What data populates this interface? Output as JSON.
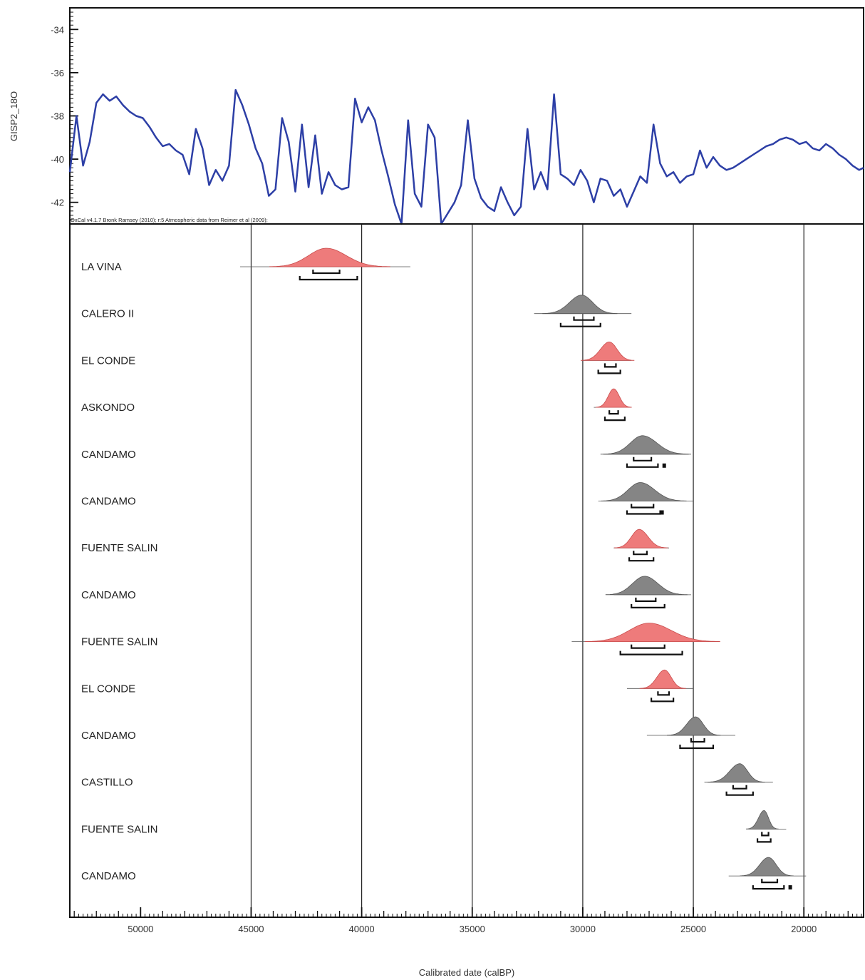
{
  "chart_data": {
    "type": "oxcal-multiplot",
    "x_axis": {
      "label": "Calibrated date (calBP)",
      "range": [
        53200,
        17300
      ],
      "reversed": true,
      "major_ticks": [
        50000,
        45000,
        40000,
        35000,
        30000,
        25000,
        20000
      ],
      "minor_step": 1000,
      "micro_step": 200,
      "gridlines": [
        45000,
        40000,
        35000,
        30000,
        25000,
        20000
      ]
    },
    "top_panel": {
      "ylabel": "GISP2_18O",
      "y_range": [
        -43,
        -33
      ],
      "y_ticks": [
        -34,
        -36,
        -38,
        -40,
        -42
      ],
      "y_tick_labels": [
        "-34",
        "-36",
        "-38",
        "-40",
        "-42"
      ],
      "credit": "OxCal v4.1.7 Bronk Ramsey (2010); r:5 Atmospheric data from Reimer et al (2009);",
      "line_color": "#2d3fa6",
      "series": {
        "x": [
          53200,
          52900,
          52600,
          52300,
          52000,
          51700,
          51400,
          51100,
          50800,
          50500,
          50200,
          49900,
          49600,
          49300,
          49000,
          48700,
          48400,
          48100,
          47800,
          47500,
          47200,
          46900,
          46600,
          46300,
          46000,
          45700,
          45400,
          45100,
          44800,
          44500,
          44200,
          43900,
          43600,
          43300,
          43000,
          42700,
          42400,
          42100,
          41800,
          41500,
          41200,
          40900,
          40600,
          40300,
          40000,
          39700,
          39400,
          39100,
          38800,
          38500,
          38200,
          37900,
          37600,
          37300,
          37000,
          36700,
          36400,
          36100,
          35800,
          35500,
          35200,
          34900,
          34600,
          34300,
          34000,
          33700,
          33400,
          33100,
          32800,
          32500,
          32200,
          31900,
          31600,
          31300,
          31000,
          30700,
          30400,
          30100,
          29800,
          29500,
          29200,
          28900,
          28600,
          28300,
          28000,
          27700,
          27400,
          27100,
          26800,
          26500,
          26200,
          25900,
          25600,
          25300,
          25000,
          24700,
          24400,
          24100,
          23800,
          23500,
          23200,
          22900,
          22600,
          22300,
          22000,
          21700,
          21400,
          21100,
          20800,
          20500,
          20200,
          19900,
          19600,
          19300,
          19000,
          18700,
          18400,
          18100,
          17800,
          17500,
          17300
        ],
        "y": [
          -40.6,
          -38.0,
          -40.3,
          -39.2,
          -37.4,
          -37.0,
          -37.3,
          -37.1,
          -37.5,
          -37.8,
          -38.0,
          -38.1,
          -38.5,
          -39.0,
          -39.4,
          -39.3,
          -39.6,
          -39.8,
          -40.7,
          -38.6,
          -39.5,
          -41.2,
          -40.5,
          -41.0,
          -40.3,
          -36.8,
          -37.5,
          -38.4,
          -39.5,
          -40.2,
          -41.7,
          -41.4,
          -38.1,
          -39.2,
          -41.5,
          -38.4,
          -41.3,
          -38.9,
          -41.6,
          -40.6,
          -41.2,
          -41.4,
          -41.3,
          -37.2,
          -38.3,
          -37.6,
          -38.2,
          -39.6,
          -40.8,
          -42.1,
          -43.0,
          -38.2,
          -41.6,
          -42.2,
          -38.4,
          -39.0,
          -43.0,
          -42.5,
          -42.0,
          -41.2,
          -38.2,
          -40.9,
          -41.8,
          -42.2,
          -42.4,
          -41.3,
          -42.0,
          -42.6,
          -42.2,
          -38.6,
          -41.4,
          -40.6,
          -41.4,
          -37.0,
          -40.7,
          -40.9,
          -41.2,
          -40.5,
          -41.0,
          -42.0,
          -40.9,
          -41.0,
          -41.7,
          -41.4,
          -42.2,
          -41.5,
          -40.8,
          -41.1,
          -38.4,
          -40.2,
          -40.8,
          -40.6,
          -41.1,
          -40.8,
          -40.7,
          -39.6,
          -40.4,
          -39.9,
          -40.3,
          -40.5,
          -40.4,
          -40.2,
          -40.0,
          -39.8,
          -39.6,
          -39.4,
          -39.3,
          -39.1,
          -39.0,
          -39.1,
          -39.3,
          -39.2,
          -39.5,
          -39.6,
          -39.3,
          -39.5,
          -39.8,
          -40.0,
          -40.3,
          -40.5,
          -40.4
        ],
        "name": ""
      }
    },
    "bottom_panel": {
      "pink_color": "#ee7b7b",
      "grey_color": "#858585",
      "samples": [
        {
          "label": "LA VINA",
          "kind": "pink",
          "mode": 41600,
          "sd_left": 800,
          "sd_right": 900,
          "trace": [
            45500,
            37800
          ],
          "r68": [
            42200,
            41000
          ],
          "r95": [
            42800,
            40200
          ],
          "extra": null
        },
        {
          "label": "CALERO II",
          "kind": "grey",
          "mode": 30050,
          "sd_left": 550,
          "sd_right": 500,
          "trace": [
            32200,
            27800
          ],
          "r68": [
            30400,
            29500
          ],
          "r95": [
            31000,
            29200
          ],
          "extra": null
        },
        {
          "label": "EL CONDE",
          "kind": "pink",
          "mode": 28800,
          "sd_left": 400,
          "sd_right": 350,
          "trace": [
            30000,
            27800
          ],
          "r68": [
            29000,
            28500
          ],
          "r95": [
            29300,
            28300
          ],
          "extra": null
        },
        {
          "label": "ASKONDO",
          "kind": "pink",
          "mode": 28600,
          "sd_left": 250,
          "sd_right": 250,
          "trace": [
            29500,
            27800
          ],
          "r68": [
            28800,
            28400
          ],
          "r95": [
            29000,
            28100
          ],
          "extra": null
        },
        {
          "label": "CANDAMO",
          "kind": "grey",
          "mode": 27300,
          "sd_left": 550,
          "sd_right": 650,
          "trace": [
            29200,
            25100
          ],
          "r68": [
            27700,
            26900
          ],
          "r95": [
            28000,
            26600
          ],
          "extra": 26300
        },
        {
          "label": "CANDAMO",
          "kind": "grey",
          "mode": 27400,
          "sd_left": 550,
          "sd_right": 650,
          "trace": [
            29300,
            25000
          ],
          "r68": [
            27800,
            26800
          ],
          "r95": [
            28000,
            26500
          ],
          "extra": 26400
        },
        {
          "label": "FUENTE SALIN",
          "kind": "pink",
          "mode": 27450,
          "sd_left": 350,
          "sd_right": 400,
          "trace": [
            28600,
            26100
          ],
          "r68": [
            27700,
            27100
          ],
          "r95": [
            27900,
            26800
          ],
          "extra": null
        },
        {
          "label": "CANDAMO",
          "kind": "grey",
          "mode": 27200,
          "sd_left": 550,
          "sd_right": 600,
          "trace": [
            28600,
            25100
          ],
          "r68": [
            27600,
            26700
          ],
          "r95": [
            27800,
            26300
          ],
          "extra": null
        },
        {
          "label": "FUENTE SALIN",
          "kind": "pink",
          "mode": 27000,
          "sd_left": 900,
          "sd_right": 1000,
          "trace": [
            30500,
            23800
          ],
          "r68": [
            27800,
            26300
          ],
          "r95": [
            28300,
            25500
          ],
          "extra": null
        },
        {
          "label": "EL CONDE",
          "kind": "pink",
          "mode": 26300,
          "sd_left": 350,
          "sd_right": 300,
          "trace": [
            28000,
            25000
          ],
          "r68": [
            26600,
            26100
          ],
          "r95": [
            26900,
            25900
          ],
          "extra": null
        },
        {
          "label": "CANDAMO",
          "kind": "grey",
          "mode": 24900,
          "sd_left": 400,
          "sd_right": 350,
          "trace": [
            27100,
            23100
          ],
          "r68": [
            25100,
            24500
          ],
          "r95": [
            25600,
            24100
          ],
          "extra": null
        },
        {
          "label": "CASTILLO",
          "kind": "grey",
          "mode": 22900,
          "sd_left": 450,
          "sd_right": 350,
          "trace": [
            24500,
            21400
          ],
          "r68": [
            23200,
            22600
          ],
          "r95": [
            23500,
            22300
          ],
          "extra": null
        },
        {
          "label": "FUENTE SALIN",
          "kind": "grey",
          "mode": 21800,
          "sd_left": 250,
          "sd_right": 200,
          "trace": [
            22500,
            20800
          ],
          "r68": [
            21900,
            21600
          ],
          "r95": [
            22100,
            21500
          ],
          "extra": null
        },
        {
          "label": "CANDAMO",
          "kind": "grey",
          "mode": 21600,
          "sd_left": 400,
          "sd_right": 350,
          "trace": [
            23400,
            19900
          ],
          "r68": [
            21900,
            21200
          ],
          "r95": [
            22300,
            20900
          ],
          "extra": 20600
        }
      ]
    }
  }
}
